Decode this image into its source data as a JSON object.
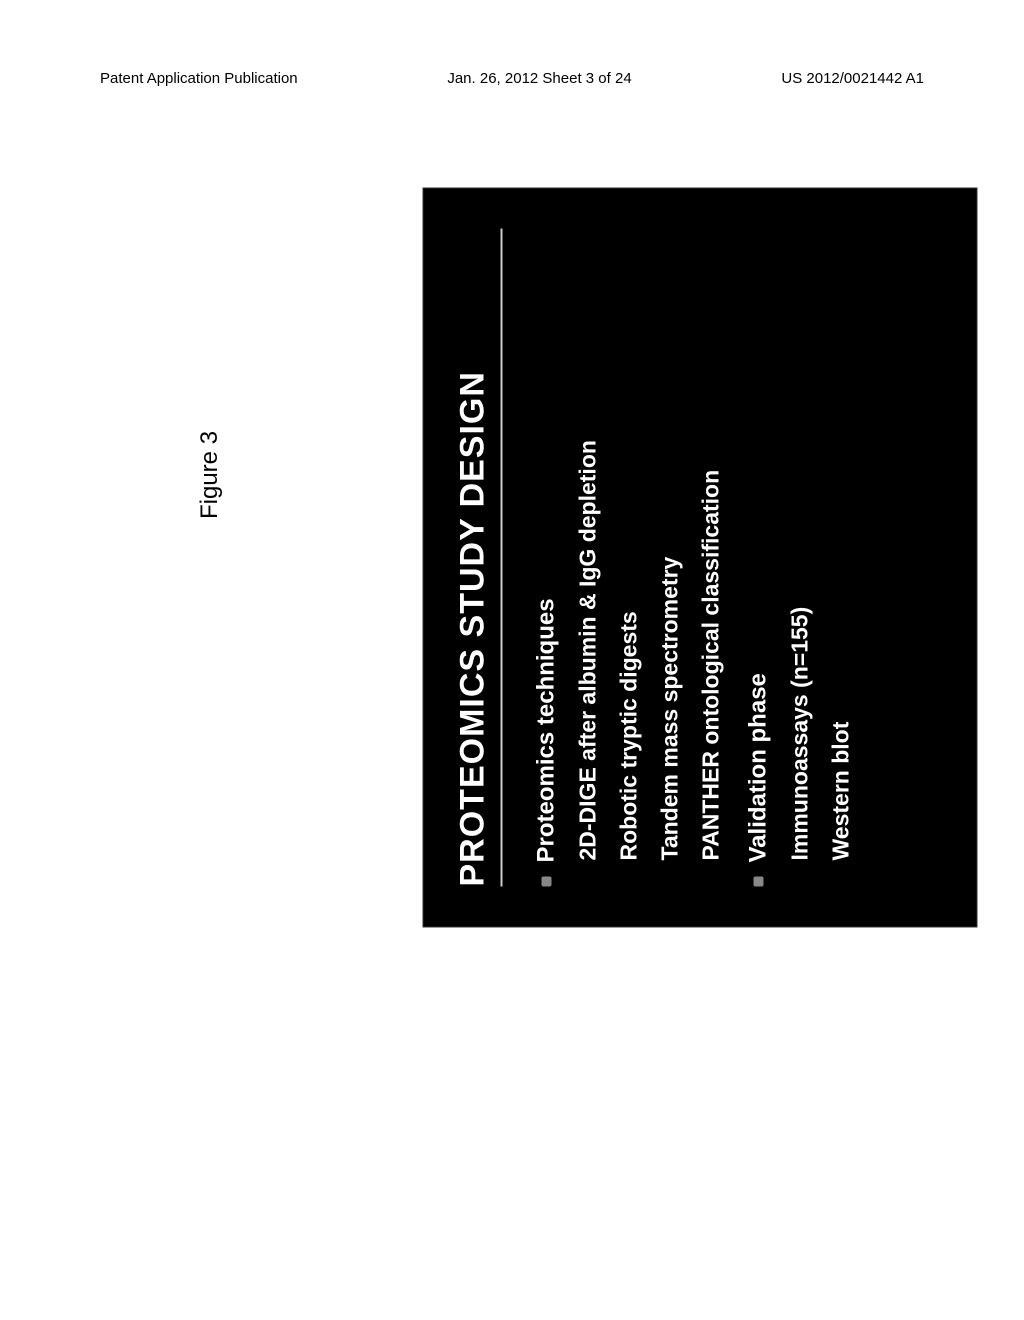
{
  "header": {
    "left": "Patent Application Publication",
    "center": "Jan. 26, 2012  Sheet 3 of 24",
    "right": "US 2012/0021442 A1"
  },
  "figure_label": "Figure 3",
  "slide": {
    "title": "PROTEOMICS STUDY DESIGN",
    "background_color": "#000000",
    "text_color": "#ffffff",
    "title_fontsize": 34,
    "heading_fontsize": 24,
    "item_fontsize": 23,
    "sections": [
      {
        "heading": "Proteomics techniques",
        "items": [
          "2D-DIGE after albumin & IgG depletion",
          "Robotic tryptic digests",
          "Tandem mass spectrometry",
          "PANTHER ontological classification"
        ]
      },
      {
        "heading": "Validation phase",
        "items": [
          "Immunoassays (n=155)",
          "Western blot"
        ]
      }
    ]
  }
}
